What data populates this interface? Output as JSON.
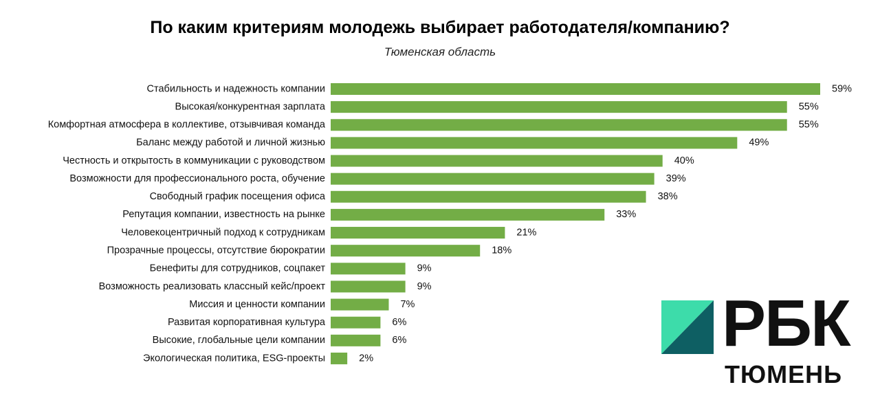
{
  "chart_data": {
    "type": "bar",
    "orientation": "horizontal",
    "title": "По каким критериям молодежь выбирает работодателя/компанию?",
    "subtitle": "Тюменская область",
    "value_suffix": "%",
    "bar_color": "#73ad46",
    "xlim": [
      0,
      59
    ],
    "grid": false,
    "categories": [
      "Стабильность и надежность компании",
      "Высокая/конкурентная зарплата",
      "Комфортная атмосфера в коллективе, отзывчивая команда",
      "Баланс между работой и личной жизнью",
      "Честность и открытость в коммуникации с руководством",
      "Возможности для профессионального роста, обучение",
      "Свободный график посещения офиса",
      "Репутация компании, известность на рынке",
      "Человекоцентричный подход к сотрудникам",
      "Прозрачные процессы, отсутствие бюрократии",
      "Бенефиты для сотрудников, соцпакет",
      "Возможность реализовать классный кейс/проект",
      "Миссия и ценности компании",
      "Развитая корпоративная культура",
      "Высокие, глобальные цели компании",
      "Экологическая политика, ESG-проекты"
    ],
    "values": [
      59,
      55,
      55,
      49,
      40,
      39,
      38,
      33,
      21,
      18,
      9,
      9,
      7,
      6,
      6,
      2
    ]
  },
  "logo": {
    "word": "РБК",
    "city": "ТЮМЕНЬ",
    "accent_light": "#3ddcaa",
    "accent_dark": "#0e5f63"
  }
}
